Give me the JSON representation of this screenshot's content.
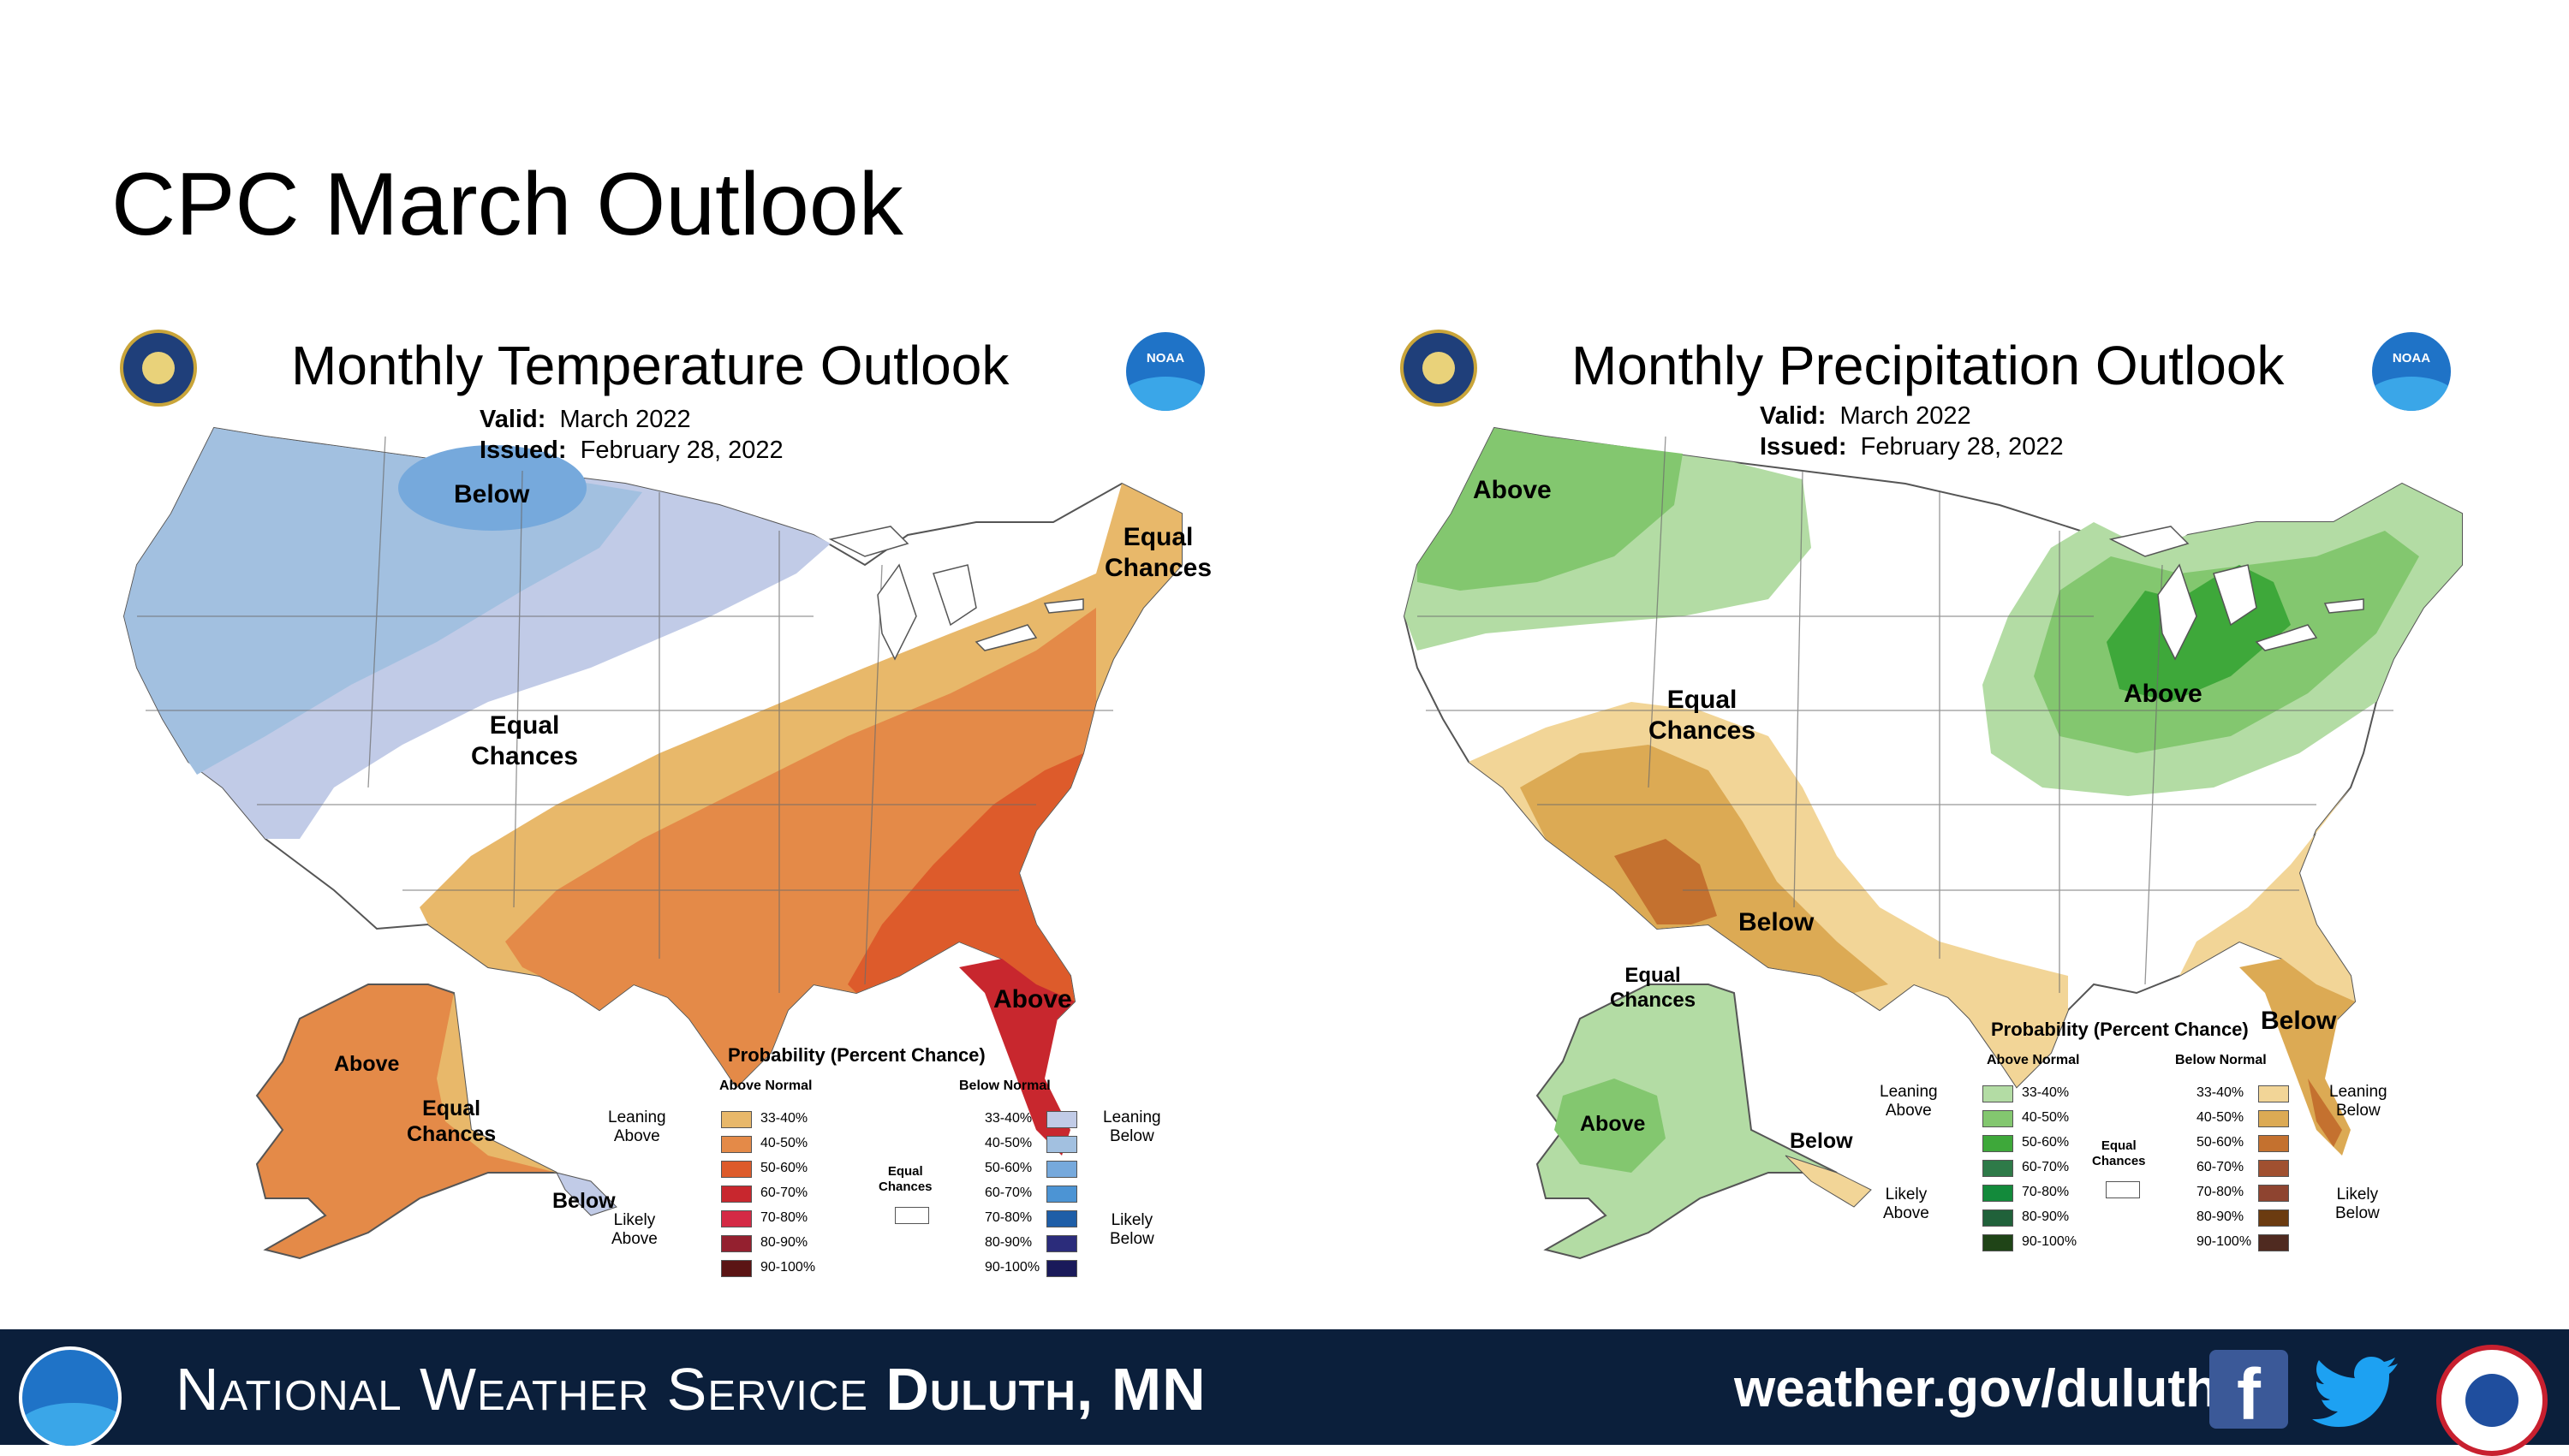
{
  "slide": {
    "title": "CPC March Outlook"
  },
  "temperature": {
    "title": "Monthly Temperature Outlook",
    "valid_label": "Valid:",
    "valid_value": "March 2022",
    "issued_label": "Issued:",
    "issued_value": "February 28, 2022",
    "labels": {
      "below_north": "Below",
      "equal_west": "Equal\nChances",
      "equal_ne": "Equal\nChances",
      "above_se": "Above",
      "above_ak": "Above",
      "equal_ak": "Equal\nChances",
      "below_ak": "Below"
    },
    "legend": {
      "title": "Probability (Percent Chance)",
      "above_head": "Above Normal",
      "below_head": "Below Normal",
      "leaning_above": "Leaning\nAbove",
      "likely_above": "Likely\nAbove",
      "leaning_below": "Leaning\nBelow",
      "likely_below": "Likely\nBelow",
      "equal": "Equal\nChances",
      "ranges": [
        "33-40%",
        "40-50%",
        "50-60%",
        "60-70%",
        "70-80%",
        "80-90%",
        "90-100%"
      ],
      "above_colors": [
        "#e8b86a",
        "#e48a48",
        "#dd5b2b",
        "#c8272e",
        "#d42a45",
        "#94202f",
        "#5b1414"
      ],
      "below_colors": [
        "#c1cbe7",
        "#a2c0e0",
        "#76a9dc",
        "#4c94d4",
        "#1e5ea7",
        "#2b2c7b",
        "#1a1a5a"
      ]
    }
  },
  "precipitation": {
    "title": "Monthly Precipitation Outlook",
    "valid_label": "Valid:",
    "valid_value": "March 2022",
    "issued_label": "Issued:",
    "issued_value": "February 28, 2022",
    "labels": {
      "above_nw": "Above",
      "equal_west": "Equal\nChances",
      "above_glakes": "Above",
      "below_sw": "Below",
      "below_fl": "Below",
      "equal_ak": "Equal\nChances",
      "above_ak": "Above",
      "below_ak": "Below"
    },
    "legend": {
      "title": "Probability (Percent Chance)",
      "above_head": "Above Normal",
      "below_head": "Below Normal",
      "leaning_above": "Leaning\nAbove",
      "likely_above": "Likely\nAbove",
      "leaning_below": "Leaning\nBelow",
      "likely_below": "Likely\nBelow",
      "equal": "Equal\nChances",
      "ranges": [
        "33-40%",
        "40-50%",
        "50-60%",
        "60-70%",
        "70-80%",
        "80-90%",
        "90-100%"
      ],
      "above_colors": [
        "#b3dca4",
        "#83c76f",
        "#3ea83a",
        "#2e7a48",
        "#138a3b",
        "#20613a",
        "#1f4417"
      ],
      "below_colors": [
        "#f2d597",
        "#dcaa54",
        "#c4712f",
        "#a05030",
        "#8e4430",
        "#6b3b10",
        "#4f2a20"
      ]
    }
  },
  "footer": {
    "org_name": "National Weather Service ",
    "office": "Duluth, MN",
    "website": "weather.gov/duluth",
    "facebook_glyph": "f"
  }
}
